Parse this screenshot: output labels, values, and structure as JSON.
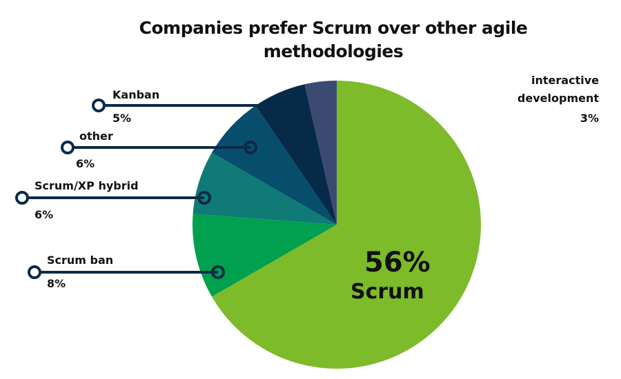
{
  "chart_data": {
    "type": "pie",
    "title": "Companies prefer Scrum over other agile methodologies",
    "categories": [
      "Scrum",
      "Scrum ban",
      "Scrum/XP hybrid",
      "other",
      "Kanban",
      "interactive development"
    ],
    "values": [
      56,
      8,
      6,
      6,
      5,
      3
    ],
    "value_labels": [
      "56%",
      "8%",
      "6%",
      "6%",
      "5%",
      "3%"
    ],
    "colors": [
      "#7dbb2a",
      "#00a04f",
      "#0f7a76",
      "#074e6c",
      "#062a48",
      "#3c4970"
    ]
  }
}
